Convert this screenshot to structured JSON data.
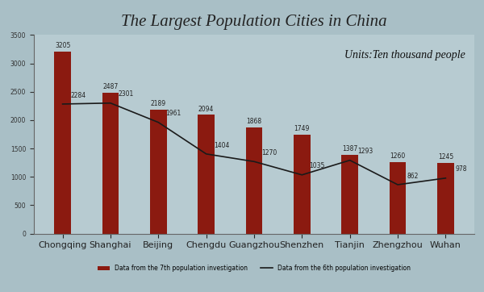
{
  "chart_data": {
    "type": "bar",
    "title": "The Largest Population Cities in China",
    "annotations": [
      "Units:Ten thousand people"
    ],
    "categories": [
      "Chongqing",
      "Shanghai",
      "Beijing",
      "Chengdu",
      "Guangzhou",
      "Shenzhen",
      "Tianjin",
      "Zhengzhou",
      "Wuhan"
    ],
    "series": [
      {
        "name": "Data from the 7th population investigation",
        "type": "bar",
        "color": "#8b1a10",
        "values": [
          3205,
          2487,
          2189,
          2094,
          1868,
          1749,
          1387,
          1260,
          1245
        ]
      },
      {
        "name": "Data from the 6th population investigation",
        "type": "line",
        "color": "#1a1a1a",
        "values": [
          2284,
          2301,
          1961,
          1404,
          1270,
          1035,
          1293,
          862,
          978
        ]
      }
    ],
    "ylim": [
      0,
      3500
    ],
    "yticks": [
      0,
      500,
      1000,
      1500,
      2000,
      2500,
      3000,
      3500
    ],
    "grid": false,
    "legend": "lower center",
    "data_labels": true
  }
}
